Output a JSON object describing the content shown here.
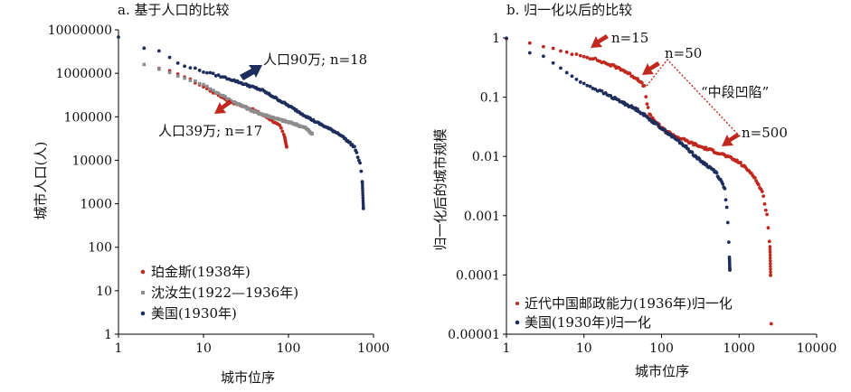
{
  "chart_data": [
    {
      "panel_id": "a",
      "type": "scatter",
      "title": "a. 基于人口的比较",
      "xlabel": "城市位序",
      "ylabel": "城市人口(人)",
      "xscale": "log",
      "yscale": "log",
      "xlim": [
        1,
        1000
      ],
      "ylim": [
        1,
        10000000
      ],
      "xticks": [
        "1",
        "10",
        "100",
        "1000"
      ],
      "yticks": [
        "1",
        "10",
        "100",
        "1000",
        "10000",
        "100000",
        "1000000",
        "10000000"
      ],
      "grid": false,
      "legend_position": "bottom-left",
      "series": [
        {
          "name": "珀金斯(1938年)",
          "color": "#c0281e",
          "curve": [
            [
              3,
              1250000
            ],
            [
              5,
              1000000
            ],
            [
              8,
              620000
            ],
            [
              12,
              400000
            ],
            [
              20,
              230000
            ],
            [
              40,
              140000
            ],
            [
              60,
              90000
            ],
            [
              80,
              60000
            ],
            [
              90,
              35000
            ],
            [
              95,
              20000
            ]
          ]
        },
        {
          "name": "沈汝生(1922—1936年)",
          "color": "#8c8c8c",
          "curve": [
            [
              2,
              1650000
            ],
            [
              3,
              1200000
            ],
            [
              5,
              900000
            ],
            [
              10,
              550000
            ],
            [
              20,
              250000
            ],
            [
              40,
              130000
            ],
            [
              80,
              85000
            ],
            [
              120,
              68000
            ],
            [
              160,
              55000
            ],
            [
              190,
              40000
            ]
          ]
        },
        {
          "name": "美国(1930年)",
          "color": "#1f2d5c",
          "curve": [
            [
              1,
              6900000
            ],
            [
              2,
              3700000
            ],
            [
              3,
              3300000
            ],
            [
              5,
              1700000
            ],
            [
              10,
              1100000
            ],
            [
              20,
              750000
            ],
            [
              50,
              400000
            ],
            [
              100,
              180000
            ],
            [
              200,
              80000
            ],
            [
              400,
              40000
            ],
            [
              600,
              20000
            ],
            [
              700,
              8000
            ],
            [
              740,
              3000
            ],
            [
              760,
              800
            ]
          ]
        }
      ],
      "annotations": [
        {
          "text": "人口90万; n=18",
          "x": 18,
          "y": 900000,
          "arrow_color": "#1f2d5c"
        },
        {
          "text": "人口39万; n=17",
          "x": 17,
          "y": 390000,
          "arrow_color": "#c0281e"
        }
      ]
    },
    {
      "panel_id": "b",
      "type": "scatter",
      "title": "b. 归一化以后的比较",
      "xlabel": "城市位序",
      "ylabel": "归一化后的城市规模",
      "xscale": "log",
      "yscale": "log",
      "xlim": [
        1,
        10000
      ],
      "ylim": [
        1e-05,
        1
      ],
      "xticks": [
        "1",
        "10",
        "100",
        "1000",
        "10000"
      ],
      "yticks": [
        "1",
        "0.1",
        "0.01",
        "0.001",
        "0.0001",
        "0.00001"
      ],
      "grid": false,
      "legend_position": "bottom-left",
      "series": [
        {
          "name": "近代中国邮政能力(1936年)归一化",
          "color": "#c0281e",
          "curve": [
            [
              1,
              1
            ],
            [
              2,
              0.8
            ],
            [
              5,
              0.6
            ],
            [
              10,
              0.5
            ],
            [
              15,
              0.42
            ],
            [
              30,
              0.3
            ],
            [
              50,
              0.2
            ],
            [
              60,
              0.15
            ],
            [
              65,
              0.08
            ],
            [
              70,
              0.05
            ],
            [
              100,
              0.03
            ],
            [
              150,
              0.022
            ],
            [
              300,
              0.015
            ],
            [
              600,
              0.011
            ],
            [
              1000,
              0.008
            ],
            [
              1500,
              0.005
            ],
            [
              2000,
              0.0025
            ],
            [
              2300,
              0.001
            ],
            [
              2500,
              0.0003
            ],
            [
              2550,
              0.0001
            ]
          ],
          "outliers": [
            [
              2600,
              1.5e-05
            ]
          ]
        },
        {
          "name": "美国(1930年)归一化",
          "color": "#1f2d5c",
          "curve": [
            [
              1,
              1
            ],
            [
              2,
              0.55
            ],
            [
              3,
              0.5
            ],
            [
              5,
              0.3
            ],
            [
              10,
              0.17
            ],
            [
              20,
              0.11
            ],
            [
              50,
              0.06
            ],
            [
              100,
              0.03
            ],
            [
              200,
              0.015
            ],
            [
              300,
              0.009
            ],
            [
              500,
              0.0055
            ],
            [
              650,
              0.003
            ],
            [
              700,
              0.0012
            ],
            [
              730,
              0.0005
            ],
            [
              750,
              0.0002
            ],
            [
              760,
              0.00012
            ]
          ]
        }
      ],
      "annotations": [
        {
          "text": "n=15",
          "x": 15,
          "y": 0.42
        },
        {
          "text": "n=50",
          "x": 50,
          "y": 0.2
        },
        {
          "text": "n=500",
          "x": 500,
          "y": 0.012
        },
        {
          "text": "“中段凹陷”",
          "x": 150,
          "y": 0.1
        }
      ]
    }
  ]
}
